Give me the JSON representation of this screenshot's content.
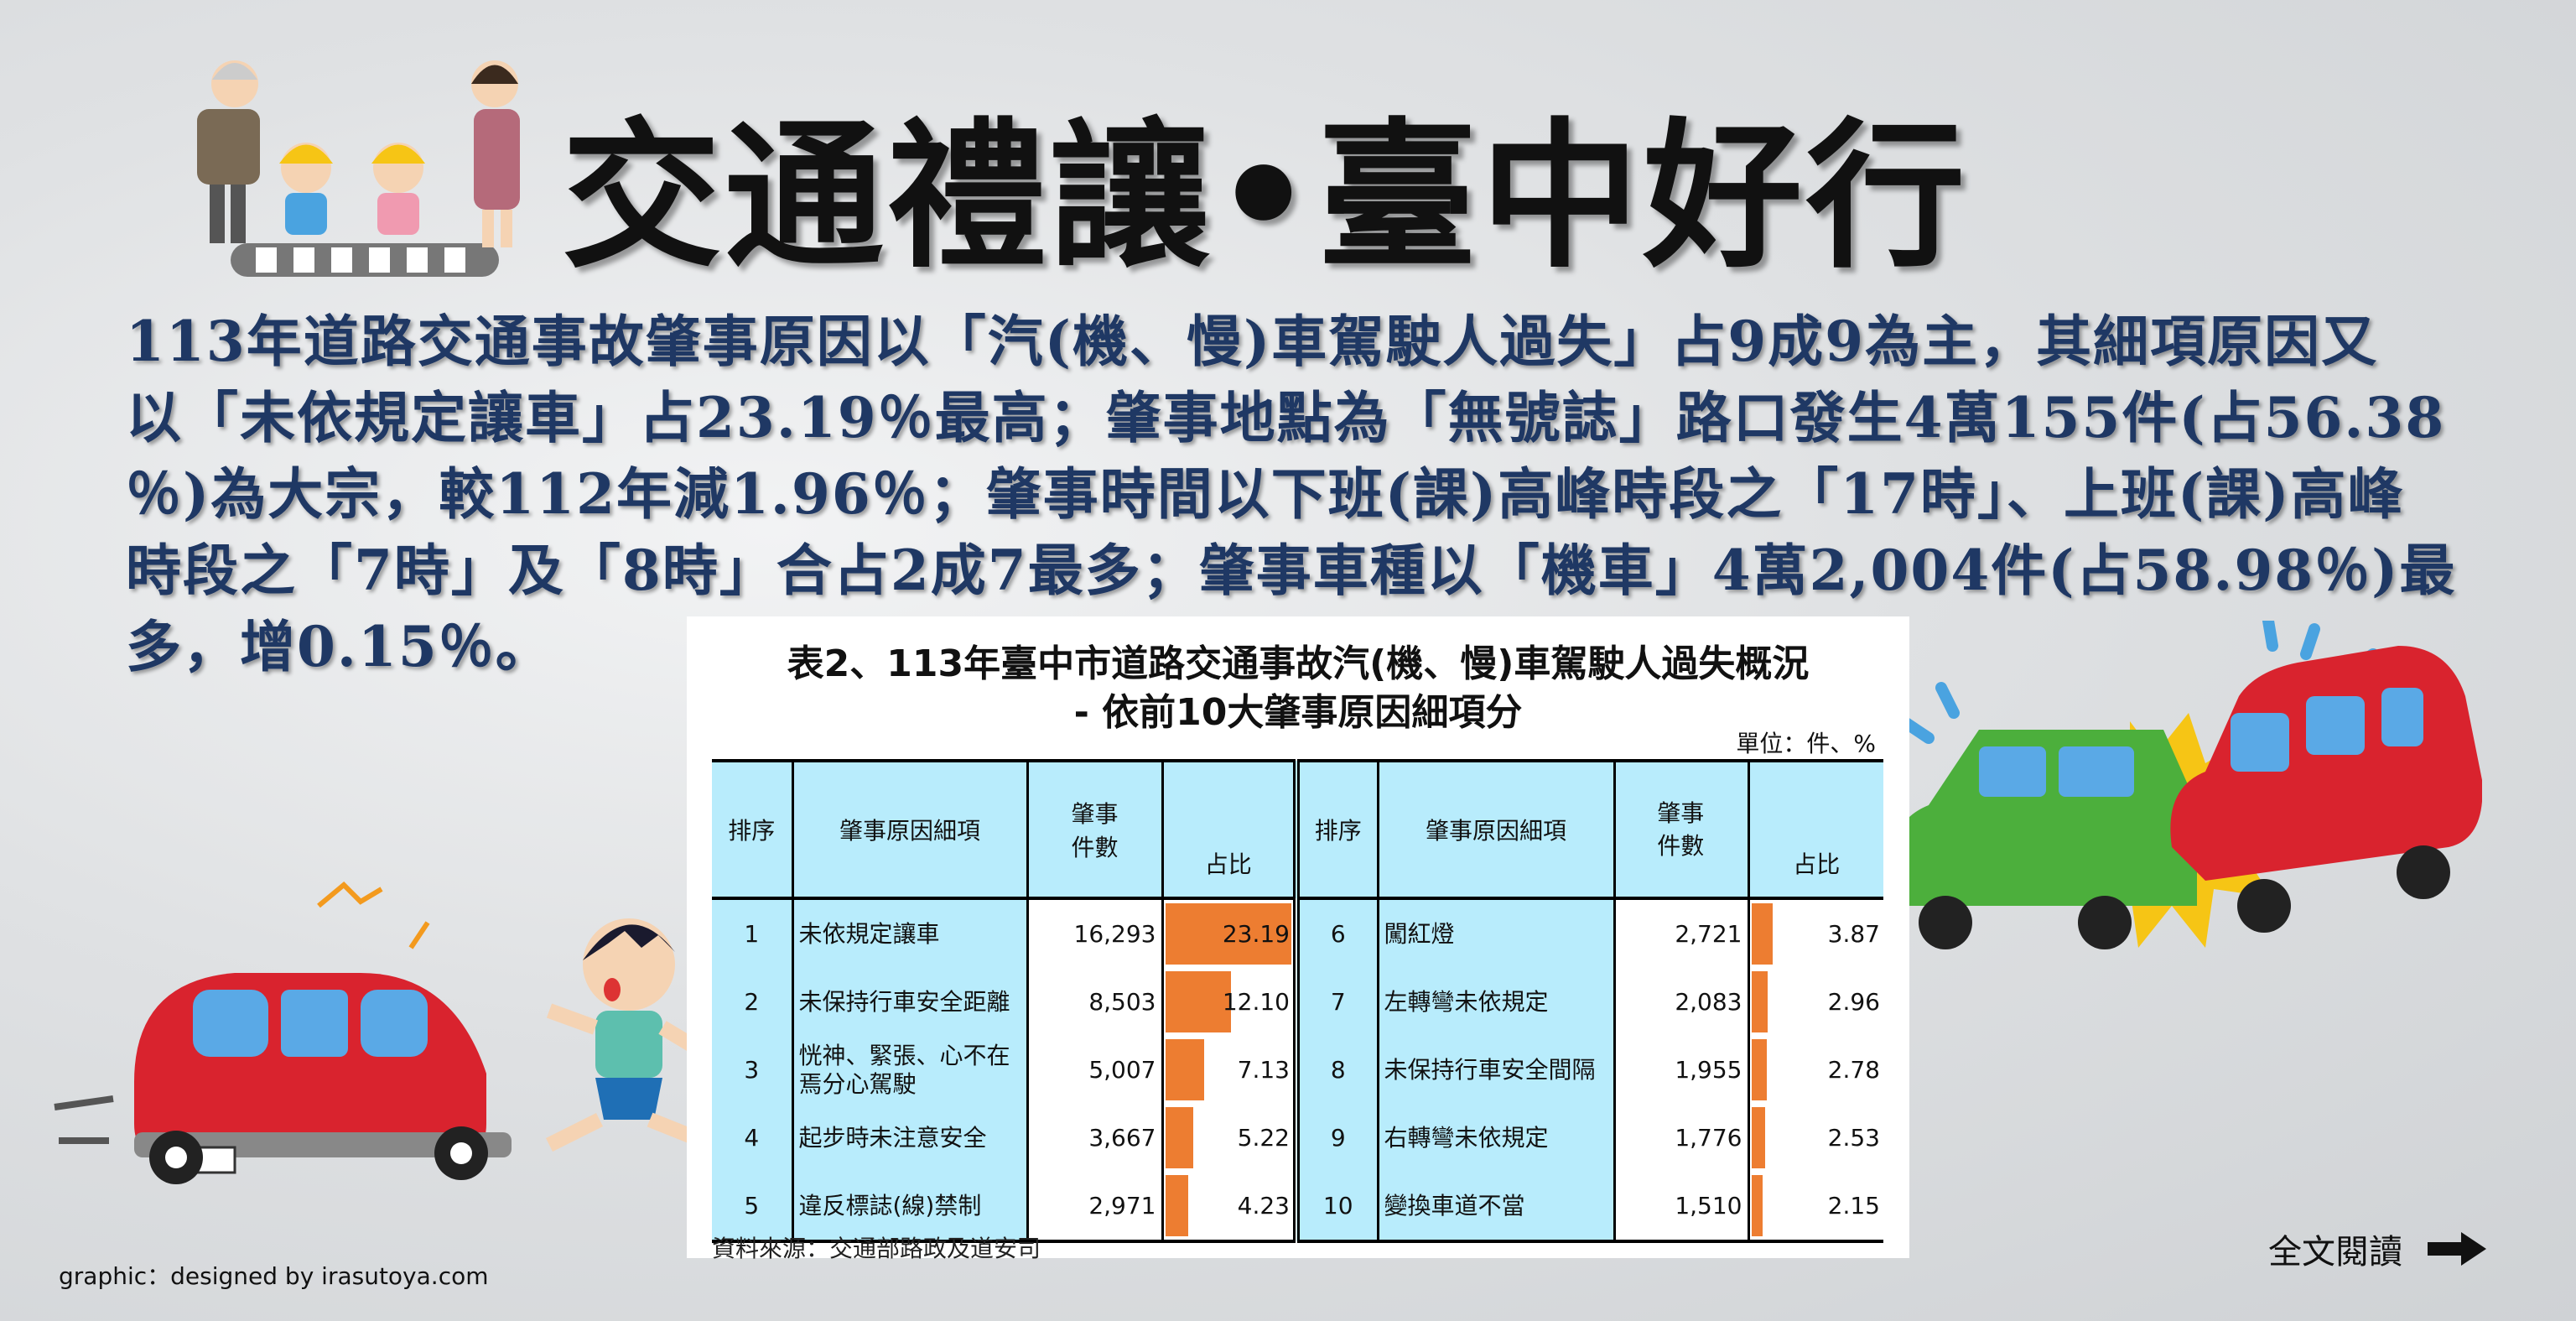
{
  "title": "交通禮讓•臺中好行",
  "paragraph_lines": [
    "113年道路交通事故肇事原因以「汽(機、慢)車駕駛人過失」占9成9為主，其細項原因又",
    "以「未依規定讓車」占23.19％最高；肇事地點為「無號誌」路口發生4萬155件(占56.38",
    "％)為大宗，較112年減1.96％；肇事時間以下班(課)高峰時段之「17時」、上班(課)高峰",
    "時段之「7時」及「8時」合占2成7最多；肇事車種以「機車」4萬2,004件(占58.98％)最",
    "多，增0.15％。"
  ],
  "table": {
    "title_line1": "表2、113年臺中市道路交通事故汽(機、慢)車駕駛人過失概況",
    "title_line2": "- 依前10大肇事原因細項分",
    "unit": "單位：件、%",
    "headers": {
      "rank": "排序",
      "cause": "肇事原因細項",
      "count": "肇事件數",
      "count_l1": "肇事",
      "count_l2": "件數",
      "share": "占比"
    },
    "bar_color": "#ed7d31",
    "header_bg": "#b8ecfc",
    "left_rows": [
      {
        "rank": "1",
        "cause": "未依規定讓車",
        "count": "16,293",
        "share": "23.19",
        "share_value": 23.19
      },
      {
        "rank": "2",
        "cause": "未保持行車安全距離",
        "count": "8,503",
        "share": "12.10",
        "share_value": 12.1
      },
      {
        "rank": "3",
        "cause": "恍神、緊張、心不在焉分心駕駛",
        "count": "5,007",
        "share": "7.13",
        "share_value": 7.13
      },
      {
        "rank": "4",
        "cause": "起步時未注意安全",
        "count": "3,667",
        "share": "5.22",
        "share_value": 5.22
      },
      {
        "rank": "5",
        "cause": "違反標誌(線)禁制",
        "count": "2,971",
        "share": "4.23",
        "share_value": 4.23
      }
    ],
    "right_rows": [
      {
        "rank": "6",
        "cause": "闖紅燈",
        "count": "2,721",
        "share": "3.87",
        "share_value": 3.87
      },
      {
        "rank": "7",
        "cause": "左轉彎未依規定",
        "count": "2,083",
        "share": "2.96",
        "share_value": 2.96
      },
      {
        "rank": "8",
        "cause": "未保持行車安全間隔",
        "count": "1,955",
        "share": "2.78",
        "share_value": 2.78
      },
      {
        "rank": "9",
        "cause": "右轉彎未依規定",
        "count": "1,776",
        "share": "2.53",
        "share_value": 2.53
      },
      {
        "rank": "10",
        "cause": "變換車道不當",
        "count": "1,510",
        "share": "2.15",
        "share_value": 2.15
      }
    ],
    "source": "資料來源：交通部路政及道安司"
  },
  "credit": "graphic：designed by irasutoya.com",
  "read_more": {
    "label": "全文閱讀",
    "icon": "arrow-right-icon"
  },
  "colors": {
    "paragraph": "#1f3864",
    "title": "#111111",
    "car_red": "#d9232e",
    "car_green": "#4caf3c"
  }
}
